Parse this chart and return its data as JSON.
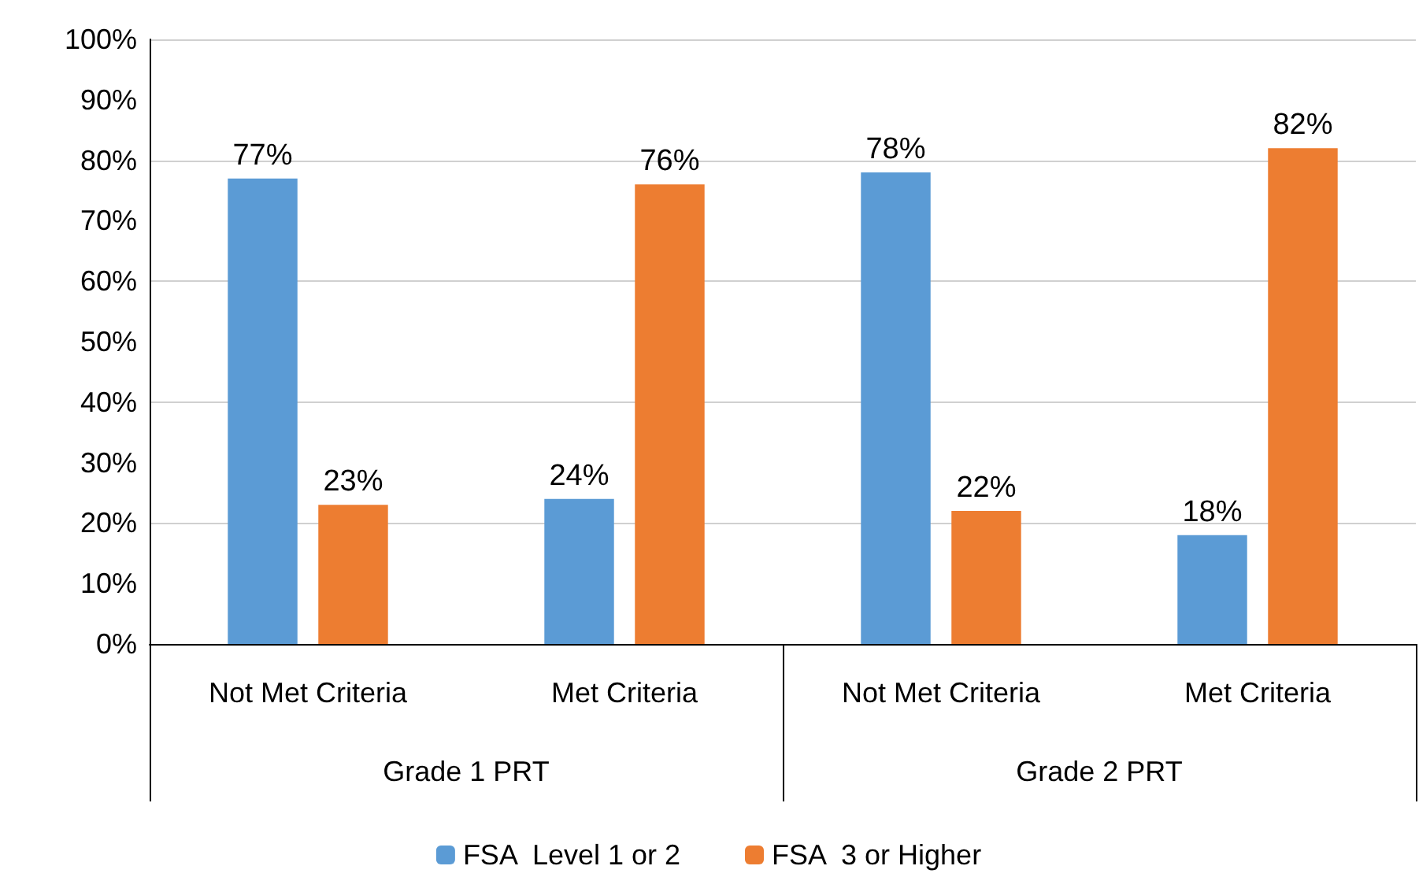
{
  "chart_data": {
    "type": "bar",
    "categories": [
      "Not Met Criteria",
      "Met Criteria",
      "Not Met Criteria",
      "Met Criteria"
    ],
    "annotations": [
      "Grade 1 PRT",
      "Grade 2 PRT"
    ],
    "series": [
      {
        "name": "FSA  Level 1 or 2",
        "color": "#5b9bd5",
        "values": [
          77,
          24,
          78,
          18
        ],
        "value_labels": [
          "77%",
          "24%",
          "78%",
          "18%"
        ]
      },
      {
        "name": "FSA  3 or Higher",
        "color": "#ed7d31",
        "values": [
          23,
          76,
          22,
          82
        ],
        "value_labels": [
          "23%",
          "76%",
          "22%",
          "82%"
        ]
      }
    ],
    "ylim": [
      0,
      100
    ],
    "yticks": [
      {
        "value": 0,
        "label": "0%"
      },
      {
        "value": 10,
        "label": "10%"
      },
      {
        "value": 20,
        "label": "20%"
      },
      {
        "value": 30,
        "label": "30%"
      },
      {
        "value": 40,
        "label": "40%"
      },
      {
        "value": 50,
        "label": "50%"
      },
      {
        "value": 60,
        "label": "60%"
      },
      {
        "value": 70,
        "label": "70%"
      },
      {
        "value": 80,
        "label": "80%"
      },
      {
        "value": 90,
        "label": "90%"
      },
      {
        "value": 100,
        "label": "100%"
      }
    ],
    "grid": "y",
    "legend": "bottom"
  }
}
